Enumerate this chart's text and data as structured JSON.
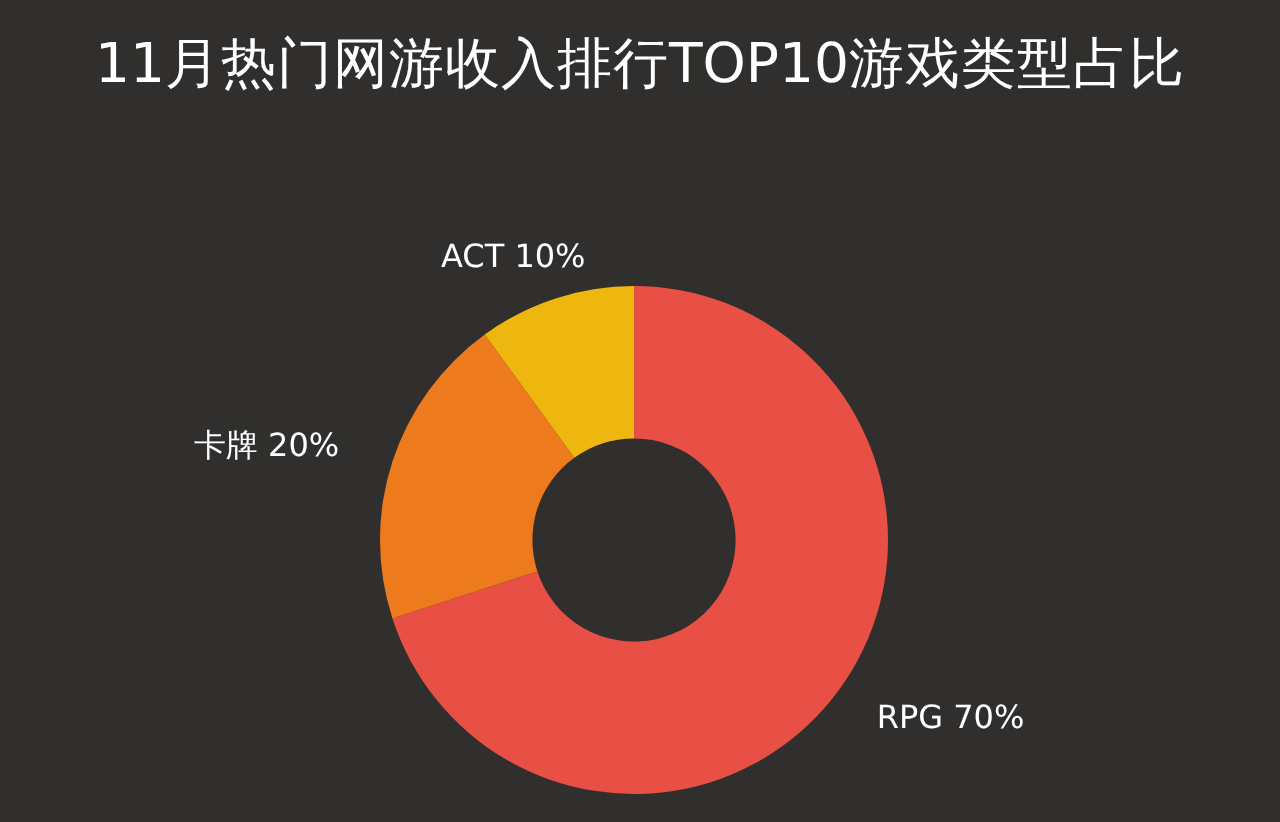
{
  "chart_data": {
    "type": "donut",
    "title": "11月热门网游收入排行TOP10游戏类型占比",
    "categories": [
      "RPG",
      "卡牌",
      "ACT"
    ],
    "values": [
      70,
      20,
      10
    ],
    "colors": [
      "#e84f45",
      "#ee7a1e",
      "#eeb70f"
    ],
    "value_labels": [
      "70%",
      "20%",
      "10%"
    ]
  }
}
